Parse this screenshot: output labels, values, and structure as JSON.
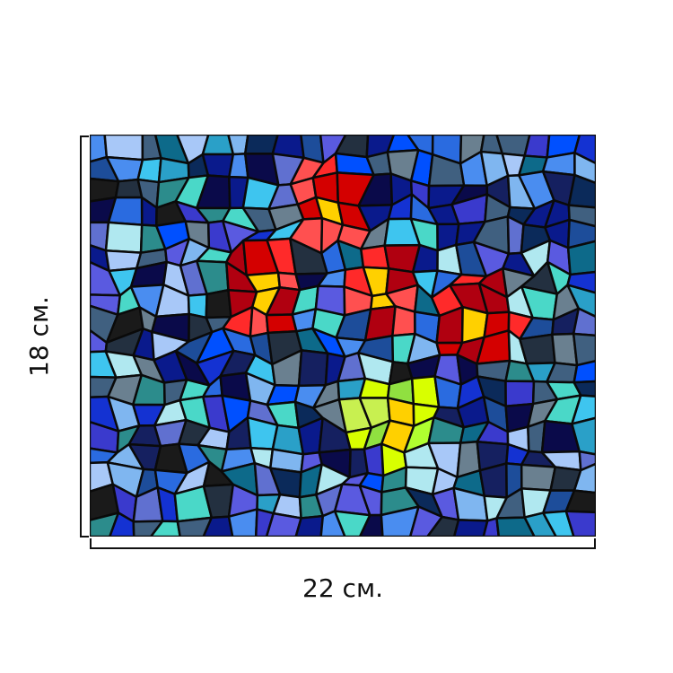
{
  "width_label": "22 см.",
  "height_label": "18 см."
}
